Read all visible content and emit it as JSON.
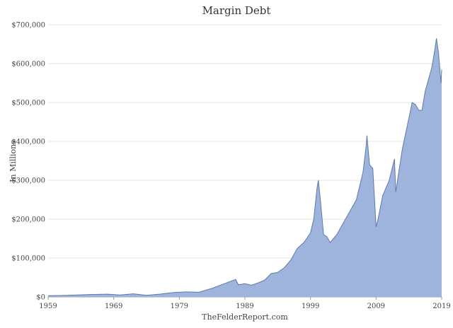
{
  "chart_data": {
    "type": "area",
    "title": "Margin Debt",
    "xlabel": "",
    "ylabel": "In Millions",
    "source": "TheFelderReport.com",
    "xlim": [
      1959,
      2019
    ],
    "ylim": [
      0,
      700000
    ],
    "x_ticks": [
      "1959",
      "1969",
      "1979",
      "1989",
      "1999",
      "2009",
      "2019"
    ],
    "y_ticks": [
      "$0",
      "$100,000",
      "$200,000",
      "$300,000",
      "$400,000",
      "$500,000",
      "$600,000",
      "$700,000"
    ],
    "grid": true,
    "colors": {
      "fill": "#9fb4dc",
      "line": "#5f79a8"
    },
    "series": [
      {
        "x": [
          1959,
          1962,
          1965,
          1968,
          1970,
          1972,
          1974,
          1976,
          1978,
          1980,
          1982,
          1984,
          1986,
          1987.6,
          1988,
          1989,
          1990,
          1991,
          1992,
          1993,
          1994,
          1995,
          1996,
          1997,
          1998,
          1999,
          1999.5,
          2000,
          2000.2,
          2000.5,
          2001,
          2001.5,
          2002,
          2003,
          2004,
          2005,
          2006,
          2007,
          2007.5,
          2007.6,
          2008,
          2008.5,
          2009,
          2009.3,
          2010,
          2011,
          2011.3,
          2011.8,
          2012,
          2013,
          2014,
          2014.5,
          2015,
          2015.5,
          2016,
          2016.5,
          2017,
          2017.5,
          2018,
          2018.2,
          2018.5,
          2018.9,
          2019
        ],
        "y": [
          3000,
          4000,
          6000,
          7000,
          5000,
          8000,
          4000,
          7000,
          11000,
          13000,
          12000,
          22000,
          35000,
          45000,
          31000,
          34000,
          30000,
          36000,
          43000,
          60000,
          63000,
          75000,
          95000,
          125000,
          140000,
          165000,
          200000,
          280000,
          300000,
          250000,
          160000,
          155000,
          140000,
          160000,
          190000,
          220000,
          250000,
          320000,
          390000,
          415000,
          340000,
          330000,
          180000,
          200000,
          260000,
          300000,
          320000,
          355000,
          270000,
          380000,
          460000,
          500000,
          495000,
          480000,
          480000,
          530000,
          560000,
          590000,
          640000,
          665000,
          630000,
          550000,
          585000
        ]
      }
    ]
  }
}
